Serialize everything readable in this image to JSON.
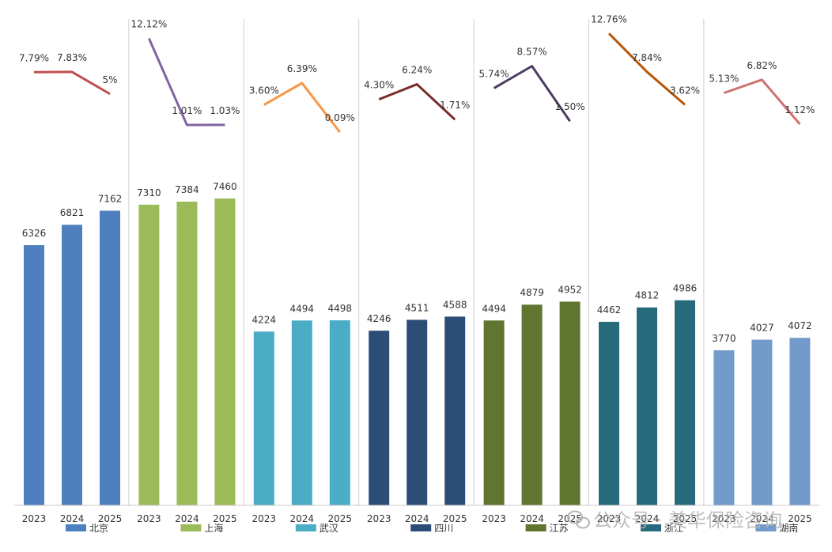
{
  "chart_data": {
    "type": "bar",
    "title": "",
    "categories": [
      "2023",
      "2024",
      "2025"
    ],
    "series": [
      {
        "name": "北京",
        "color": "#4e80bf",
        "line_color": "#c0504d",
        "values": [
          6326,
          6821,
          7162
        ],
        "growth": [
          "7.79%",
          "7.83%",
          "5%"
        ]
      },
      {
        "name": "上海",
        "color": "#9bbb59",
        "line_color": "#8064a2",
        "values": [
          7310,
          7384,
          7460
        ],
        "growth": [
          "12.12%",
          "1.01%",
          "1.03%"
        ]
      },
      {
        "name": "武汉",
        "color": "#4bacc6",
        "line_color": "#f79646",
        "values": [
          4224,
          4494,
          4498
        ],
        "growth": [
          "3.60%",
          "6.39%",
          "0.09%"
        ]
      },
      {
        "name": "四川",
        "color": "#2c4d75",
        "line_color": "#772c2a",
        "values": [
          4246,
          4511,
          4588
        ],
        "growth": [
          "4.30%",
          "6.24%",
          "1.71%"
        ]
      },
      {
        "name": "江苏",
        "color": "#5f7530",
        "line_color": "#4d3b62",
        "values": [
          4494,
          4879,
          4952
        ],
        "growth": [
          "5.74%",
          "8.57%",
          "1.50%"
        ]
      },
      {
        "name": "浙江",
        "color": "#276a7c",
        "line_color": "#b65708",
        "values": [
          4462,
          4812,
          4986
        ],
        "growth": [
          "12.76%",
          "7.84%",
          "3.62%"
        ]
      },
      {
        "name": "湖南",
        "color": "#729aca",
        "line_color": "#cd7371",
        "values": [
          3770,
          4027,
          4072
        ],
        "growth": [
          "5.13%",
          "6.82%",
          "1.12%"
        ]
      }
    ],
    "ylim": [
      0,
      8200
    ],
    "growth_ylim": [
      0,
      13
    ],
    "legend": "bottom",
    "grid": false
  },
  "watermark": {
    "text": "公众号 · 美华保险咨询",
    "icon": "wechat-icon"
  }
}
